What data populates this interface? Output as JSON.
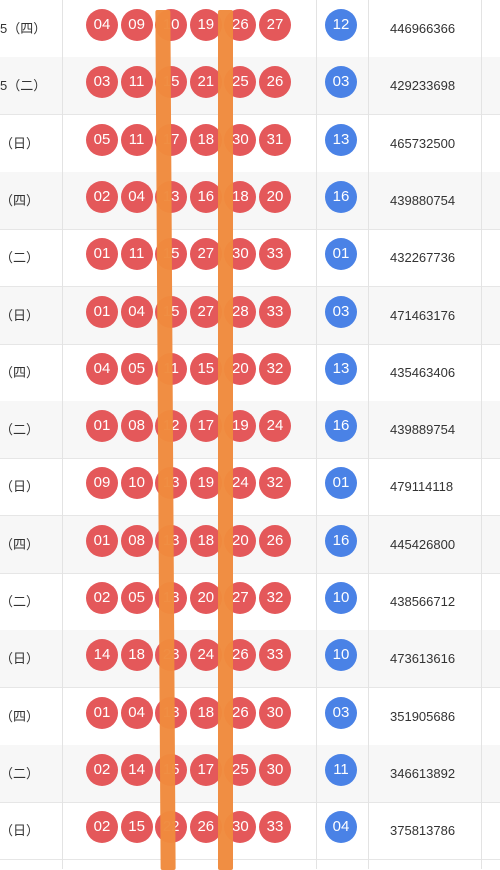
{
  "rows": [
    {
      "date": "5（四）",
      "red": [
        "04",
        "09",
        "10",
        "19",
        "26",
        "27"
      ],
      "blue": "12",
      "issue": "446966366"
    },
    {
      "date": "5（二）",
      "red": [
        "03",
        "11",
        "15",
        "21",
        "25",
        "26"
      ],
      "blue": "03",
      "issue": "429233698"
    },
    {
      "date": "（日）",
      "red": [
        "05",
        "11",
        "17",
        "18",
        "30",
        "31"
      ],
      "blue": "13",
      "issue": "465732500"
    },
    {
      "date": "（四）",
      "red": [
        "02",
        "04",
        "13",
        "16",
        "18",
        "20"
      ],
      "blue": "16",
      "issue": "439880754"
    },
    {
      "date": "（二）",
      "red": [
        "01",
        "11",
        "15",
        "27",
        "30",
        "33"
      ],
      "blue": "01",
      "issue": "432267736"
    },
    {
      "date": "（日）",
      "red": [
        "01",
        "04",
        "15",
        "27",
        "28",
        "33"
      ],
      "blue": "03",
      "issue": "471463176"
    },
    {
      "date": "（四）",
      "red": [
        "04",
        "05",
        "11",
        "15",
        "20",
        "32"
      ],
      "blue": "13",
      "issue": "435463406"
    },
    {
      "date": "（二）",
      "red": [
        "01",
        "08",
        "12",
        "17",
        "19",
        "24"
      ],
      "blue": "16",
      "issue": "439889754"
    },
    {
      "date": "（日）",
      "red": [
        "09",
        "10",
        "13",
        "19",
        "24",
        "32"
      ],
      "blue": "01",
      "issue": "479114118"
    },
    {
      "date": "（四）",
      "red": [
        "01",
        "08",
        "13",
        "18",
        "20",
        "26"
      ],
      "blue": "16",
      "issue": "445426800"
    },
    {
      "date": "（二）",
      "red": [
        "02",
        "05",
        "13",
        "20",
        "27",
        "32"
      ],
      "blue": "10",
      "issue": "438566712"
    },
    {
      "date": "（日）",
      "red": [
        "14",
        "18",
        "23",
        "24",
        "26",
        "33"
      ],
      "blue": "10",
      "issue": "473613616"
    },
    {
      "date": "（四）",
      "red": [
        "01",
        "04",
        "13",
        "18",
        "26",
        "30"
      ],
      "blue": "03",
      "issue": "351905686"
    },
    {
      "date": "（二）",
      "red": [
        "02",
        "14",
        "15",
        "17",
        "25",
        "30"
      ],
      "blue": "11",
      "issue": "346613892"
    },
    {
      "date": "（日）",
      "red": [
        "02",
        "15",
        "22",
        "26",
        "30",
        "33"
      ],
      "blue": "04",
      "issue": "375813786"
    }
  ],
  "colors": {
    "red_ball": "#e4585a",
    "blue_ball": "#4a82e6",
    "marker": "#f08a3d"
  }
}
